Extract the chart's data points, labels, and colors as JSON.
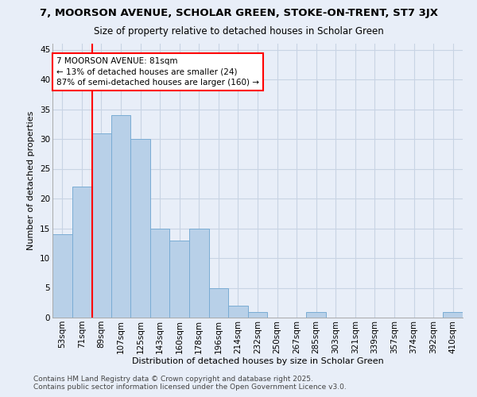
{
  "title_line1": "7, MOORSON AVENUE, SCHOLAR GREEN, STOKE-ON-TRENT, ST7 3JX",
  "title_line2": "Size of property relative to detached houses in Scholar Green",
  "xlabel": "Distribution of detached houses by size in Scholar Green",
  "ylabel": "Number of detached properties",
  "categories": [
    "53sqm",
    "71sqm",
    "89sqm",
    "107sqm",
    "125sqm",
    "143sqm",
    "160sqm",
    "178sqm",
    "196sqm",
    "214sqm",
    "232sqm",
    "250sqm",
    "267sqm",
    "285sqm",
    "303sqm",
    "321sqm",
    "339sqm",
    "357sqm",
    "374sqm",
    "392sqm",
    "410sqm"
  ],
  "values": [
    14,
    22,
    31,
    34,
    30,
    15,
    13,
    15,
    5,
    2,
    1,
    0,
    0,
    1,
    0,
    0,
    0,
    0,
    0,
    0,
    1
  ],
  "bar_color": "#b8d0e8",
  "bar_edge_color": "#7aacd4",
  "background_color": "#e8eef8",
  "grid_color": "#c8d4e4",
  "vline_x": 1.55,
  "vline_color": "red",
  "annotation_text": "7 MOORSON AVENUE: 81sqm\n← 13% of detached houses are smaller (24)\n87% of semi-detached houses are larger (160) →",
  "annotation_box_color": "red",
  "annotation_box_facecolor": "white",
  "ylim": [
    0,
    46
  ],
  "yticks": [
    0,
    5,
    10,
    15,
    20,
    25,
    30,
    35,
    40,
    45
  ],
  "footer_line1": "Contains HM Land Registry data © Crown copyright and database right 2025.",
  "footer_line2": "Contains public sector information licensed under the Open Government Licence v3.0.",
  "title_fontsize": 9.5,
  "subtitle_fontsize": 8.5,
  "axis_label_fontsize": 8,
  "tick_fontsize": 7.5,
  "annotation_fontsize": 7.5,
  "footer_fontsize": 6.5
}
